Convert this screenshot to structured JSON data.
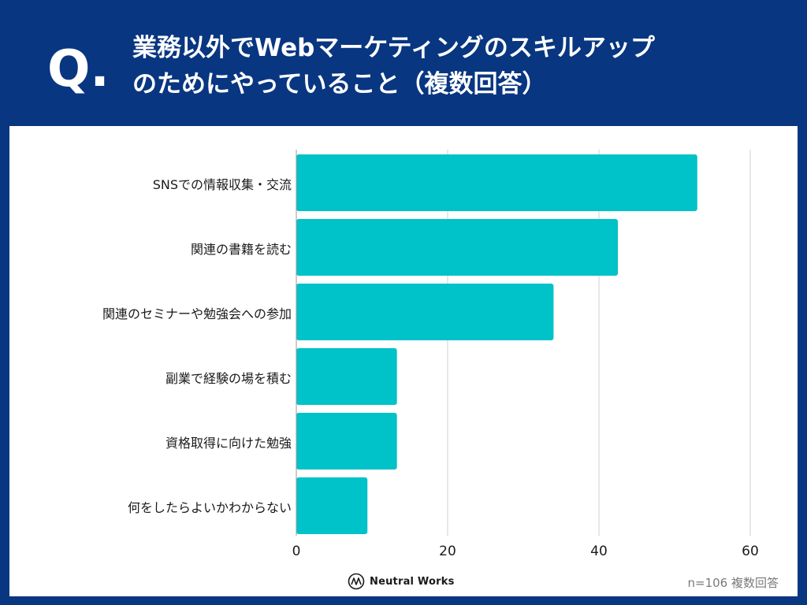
{
  "header": {
    "q_mark": "Q.",
    "title_line1": "業務以外でWebマーケティングのスキルアップ",
    "title_line2": "のためにやっていること（複数回答）"
  },
  "chart_data": {
    "type": "bar",
    "orientation": "horizontal",
    "title": "業務以外でWebマーケティングのスキルアップのためにやっていること（複数回答）",
    "categories": [
      "SNSでの情報収集・交流",
      "関連の書籍を読む",
      "関連のセミナーや勉強会への参加",
      "副業で経験の場を積む",
      "資格取得に向けた勉強",
      "何をしたらよいかわからない"
    ],
    "values": [
      53,
      42.5,
      34,
      13.3,
      13.3,
      9.4
    ],
    "xlim": [
      0,
      60
    ],
    "xticks": [
      0,
      20,
      40,
      60
    ],
    "grid": true,
    "bar_color": "#00c2c9",
    "grid_color": "#cfcfcf"
  },
  "footer": {
    "logo_text": "Neutral Works",
    "note": "n=106 複数回答"
  },
  "colors": {
    "header_bg": "#083681",
    "panel_bg": "#ffffff",
    "bar": "#00c2c9"
  }
}
